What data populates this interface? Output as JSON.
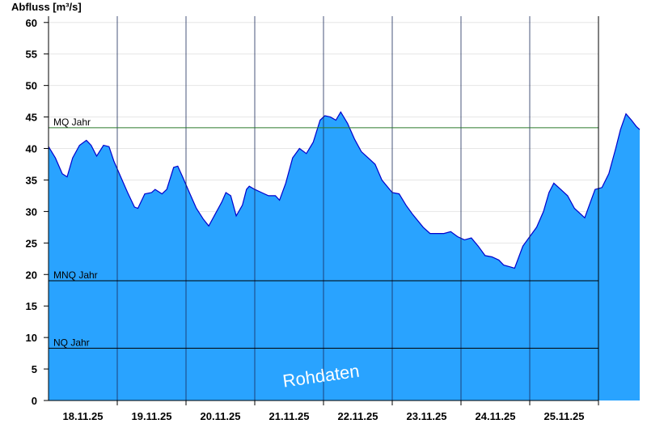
{
  "chart_data": {
    "type": "area",
    "ylabel": "Abfluss [m³/s]",
    "xlabel": "",
    "title": "",
    "ylim": [
      0,
      61
    ],
    "yticks": [
      0,
      5,
      10,
      15,
      20,
      25,
      30,
      35,
      40,
      45,
      50,
      55,
      60
    ],
    "x_days": [
      "18.11.25",
      "19.11.25",
      "20.11.25",
      "21.11.25",
      "22.11.25",
      "23.11.25",
      "24.11.25",
      "25.11.25"
    ],
    "x_range_days": [
      0,
      8
    ],
    "grid": true,
    "colors": {
      "fill": "#29a3ff",
      "line": "#0000cc",
      "mq_line": "#2a7a2a",
      "ref_line": "#000000"
    },
    "reference_lines": [
      {
        "label": "MQ Jahr",
        "value": 43.3
      },
      {
        "label": "MNQ Jahr",
        "value": 19.0
      },
      {
        "label": "NQ Jahr",
        "value": 8.3
      }
    ],
    "watermark": "Rohdaten",
    "series": [
      {
        "values": [
          [
            0.0,
            40.3
          ],
          [
            0.1,
            38.5
          ],
          [
            0.2,
            36.0
          ],
          [
            0.27,
            35.5
          ],
          [
            0.35,
            38.5
          ],
          [
            0.45,
            40.5
          ],
          [
            0.55,
            41.3
          ],
          [
            0.62,
            40.5
          ],
          [
            0.7,
            38.8
          ],
          [
            0.8,
            40.5
          ],
          [
            0.88,
            40.3
          ],
          [
            0.95,
            38.0
          ],
          [
            1.05,
            35.5
          ],
          [
            1.15,
            33.0
          ],
          [
            1.25,
            30.7
          ],
          [
            1.3,
            30.5
          ],
          [
            1.4,
            32.8
          ],
          [
            1.5,
            33.0
          ],
          [
            1.55,
            33.5
          ],
          [
            1.65,
            32.8
          ],
          [
            1.72,
            33.5
          ],
          [
            1.82,
            37.0
          ],
          [
            1.88,
            37.2
          ],
          [
            1.95,
            35.5
          ],
          [
            2.05,
            33.0
          ],
          [
            2.15,
            30.5
          ],
          [
            2.25,
            28.8
          ],
          [
            2.33,
            27.7
          ],
          [
            2.42,
            29.5
          ],
          [
            2.52,
            31.5
          ],
          [
            2.58,
            33.0
          ],
          [
            2.65,
            32.5
          ],
          [
            2.73,
            29.3
          ],
          [
            2.82,
            31.0
          ],
          [
            2.88,
            33.5
          ],
          [
            2.92,
            34.0
          ],
          [
            3.0,
            33.5
          ],
          [
            3.1,
            33.0
          ],
          [
            3.2,
            32.5
          ],
          [
            3.3,
            32.5
          ],
          [
            3.36,
            31.8
          ],
          [
            3.45,
            34.5
          ],
          [
            3.55,
            38.5
          ],
          [
            3.65,
            40.0
          ],
          [
            3.75,
            39.2
          ],
          [
            3.85,
            41.0
          ],
          [
            3.95,
            44.5
          ],
          [
            4.02,
            45.2
          ],
          [
            4.1,
            45.0
          ],
          [
            4.18,
            44.5
          ],
          [
            4.25,
            45.8
          ],
          [
            4.35,
            44.0
          ],
          [
            4.45,
            41.5
          ],
          [
            4.55,
            39.5
          ],
          [
            4.65,
            38.5
          ],
          [
            4.75,
            37.5
          ],
          [
            4.85,
            35.0
          ],
          [
            5.0,
            33.0
          ],
          [
            5.1,
            32.8
          ],
          [
            5.2,
            31.0
          ],
          [
            5.3,
            29.5
          ],
          [
            5.45,
            27.5
          ],
          [
            5.55,
            26.5
          ],
          [
            5.65,
            26.5
          ],
          [
            5.75,
            26.5
          ],
          [
            5.85,
            26.8
          ],
          [
            5.95,
            26.0
          ],
          [
            6.05,
            25.5
          ],
          [
            6.15,
            25.8
          ],
          [
            6.25,
            24.5
          ],
          [
            6.35,
            23.0
          ],
          [
            6.45,
            22.8
          ],
          [
            6.55,
            22.3
          ],
          [
            6.62,
            21.5
          ],
          [
            6.72,
            21.2
          ],
          [
            6.78,
            21.0
          ],
          [
            6.9,
            24.5
          ],
          [
            7.0,
            26.0
          ],
          [
            7.1,
            27.5
          ],
          [
            7.2,
            30.0
          ],
          [
            7.28,
            33.0
          ],
          [
            7.35,
            34.5
          ],
          [
            7.45,
            33.5
          ],
          [
            7.55,
            32.5
          ],
          [
            7.65,
            30.5
          ],
          [
            7.75,
            29.5
          ],
          [
            7.8,
            29.0
          ],
          [
            7.9,
            32.0
          ],
          [
            7.95,
            33.5
          ],
          [
            8.05,
            33.8
          ],
          [
            8.15,
            36.0
          ],
          [
            8.25,
            40.0
          ],
          [
            8.32,
            43.0
          ],
          [
            8.4,
            45.5
          ],
          [
            8.48,
            44.5
          ],
          [
            8.55,
            43.5
          ],
          [
            8.6,
            43.0
          ]
        ]
      }
    ]
  }
}
